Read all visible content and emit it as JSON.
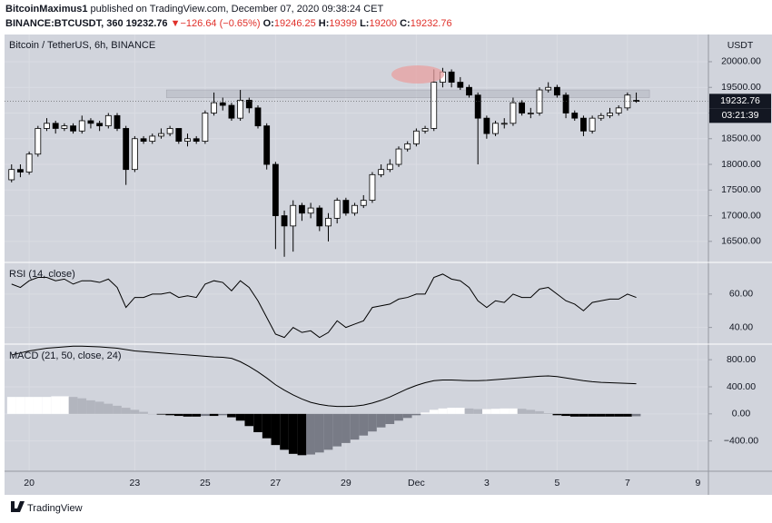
{
  "header": {
    "author": "BitcoinMaximus1",
    "published": "published on TradingView.com, December 07, 2020 09:38:24 CET",
    "symbol": "BINANCE:BTCUSDT, 360",
    "change": "▼−126.64 (−0.65%)",
    "o": "O:",
    "h": "H:",
    "l": "L:",
    "c": "C:"
  },
  "footer": "TradingView",
  "chart_data": [
    {
      "type": "candlestick",
      "title": "Bitcoin / TetherUS, 6h, BINANCE",
      "axis_title": "USDT",
      "countdown": "03:21:39",
      "up_color": "#ffffff",
      "down_color": "#000000",
      "band": [
        19300,
        19450
      ],
      "band_color": "#b8bbc4",
      "xlim": [
        -0.8,
        79.2
      ],
      "xticks": [
        {
          "value": 2,
          "label": "20"
        },
        {
          "value": 14,
          "label": "23"
        },
        {
          "value": 22,
          "label": "25"
        },
        {
          "value": 30,
          "label": "27"
        },
        {
          "value": 38,
          "label": "29"
        },
        {
          "value": 46,
          "label": "Dec"
        },
        {
          "value": 54,
          "label": "3"
        },
        {
          "value": 62,
          "label": "5"
        },
        {
          "value": 70,
          "label": "7"
        },
        {
          "value": 78,
          "label": "9"
        }
      ],
      "ylim": [
        16090,
        20530
      ],
      "yticks": [
        {
          "value": 16500,
          "label": "16500.00"
        },
        {
          "value": 17000,
          "label": "17000.00"
        },
        {
          "value": 17500,
          "label": "17500.00"
        },
        {
          "value": 18000,
          "label": "18000.00"
        },
        {
          "value": 18500,
          "label": "18500.00"
        },
        {
          "value": 19000,
          "label": "19000.00"
        },
        {
          "value": 19500,
          "label": "19500.00"
        },
        {
          "value": 20000,
          "label": "20000.00"
        }
      ],
      "grid": true,
      "open": [
        17700,
        17900,
        17850,
        18200,
        18700,
        18800,
        18700,
        18750,
        18650,
        18850,
        18800,
        18750,
        18950,
        18700,
        17900,
        18500,
        18450,
        18550,
        18600,
        18700,
        18450,
        18500,
        18450,
        19000,
        19200,
        19150,
        18900,
        19250,
        19100,
        18750,
        18000,
        17000,
        16800,
        17200,
        17050,
        17150,
        16800,
        16950,
        17300,
        17050,
        17200,
        17300,
        17800,
        17900,
        18000,
        18300,
        18400,
        18650,
        18700,
        19600,
        19800,
        19600,
        19500,
        19350,
        18900,
        18600,
        18800,
        18800,
        19200,
        19000,
        19000,
        19450,
        19500,
        19350,
        19000,
        18900,
        18650,
        18900,
        18950,
        19000,
        19100,
        19246.25
      ],
      "high": [
        18000,
        18000,
        18250,
        18750,
        18900,
        18850,
        18800,
        18800,
        18950,
        18900,
        18850,
        19000,
        19000,
        18750,
        18550,
        18550,
        18600,
        18700,
        18750,
        18700,
        18600,
        18550,
        19050,
        19400,
        19300,
        19200,
        19450,
        19300,
        19150,
        18800,
        18050,
        17100,
        17300,
        17250,
        17250,
        17200,
        17050,
        17350,
        17350,
        17250,
        17400,
        17850,
        18000,
        18100,
        18350,
        18450,
        18700,
        18750,
        19850,
        19880,
        19850,
        19700,
        19550,
        19400,
        18950,
        18850,
        18900,
        19300,
        19250,
        19100,
        19500,
        19600,
        19550,
        19400,
        19050,
        18950,
        18950,
        19000,
        19100,
        19150,
        19400,
        19399
      ],
      "low": [
        17650,
        17750,
        17800,
        18150,
        18650,
        18600,
        18650,
        18600,
        18600,
        18700,
        18650,
        18700,
        18650,
        17600,
        17850,
        18400,
        18400,
        18500,
        18550,
        18400,
        18350,
        18400,
        18400,
        18950,
        19050,
        18850,
        18850,
        19000,
        18700,
        17900,
        16350,
        16200,
        16300,
        16900,
        16950,
        16700,
        16500,
        16850,
        17000,
        17000,
        17150,
        17250,
        17750,
        17850,
        17950,
        18250,
        18350,
        18600,
        18650,
        19500,
        19500,
        19450,
        19300,
        18000,
        18500,
        18550,
        18700,
        18750,
        18950,
        18900,
        18950,
        19400,
        19300,
        18900,
        18850,
        18550,
        18600,
        18850,
        18900,
        18950,
        19050,
        19200
      ],
      "close": [
        17900,
        17850,
        18200,
        18700,
        18800,
        18700,
        18750,
        18650,
        18850,
        18800,
        18750,
        18950,
        18700,
        17900,
        18500,
        18450,
        18550,
        18600,
        18700,
        18450,
        18500,
        18450,
        19000,
        19200,
        19150,
        18900,
        19250,
        19100,
        18750,
        18000,
        17000,
        16800,
        17200,
        17050,
        17150,
        16800,
        16950,
        17300,
        17050,
        17200,
        17300,
        17800,
        17900,
        18000,
        18300,
        18400,
        18650,
        18700,
        19600,
        19800,
        19600,
        19500,
        19350,
        18900,
        18600,
        18800,
        18800,
        19200,
        19000,
        19000,
        19450,
        19500,
        19350,
        19000,
        18900,
        18650,
        18900,
        18950,
        19000,
        19100,
        19350,
        19232.76
      ]
    },
    {
      "type": "line",
      "title": "RSI (14, close)",
      "color": "#000000",
      "ylim": [
        30,
        79
      ],
      "yticks": [
        {
          "value": 40,
          "label": "40.00"
        },
        {
          "value": 60,
          "label": "60.00"
        }
      ],
      "values": [
        66,
        64,
        68,
        70,
        70,
        68,
        69,
        66,
        68,
        68,
        67,
        69,
        64,
        52,
        58,
        58,
        60,
        60,
        61,
        58,
        59,
        58,
        66,
        68,
        67,
        62,
        68,
        64,
        56,
        46,
        36,
        34,
        40,
        37,
        38,
        34,
        37,
        44,
        40,
        42,
        44,
        52,
        53,
        54,
        57,
        58,
        60,
        60,
        70,
        72,
        69,
        68,
        64,
        56,
        52,
        56,
        55,
        60,
        58,
        58,
        63,
        64,
        60,
        56,
        54,
        50,
        55,
        56,
        57,
        57,
        60,
        58
      ]
    },
    {
      "type": "macd",
      "title": "MACD (21, 50, close, 24)",
      "color": "#000000",
      "histogram_colors": {
        "pos_up": "#ffffff",
        "pos_down": "#b2b5be",
        "neg_down": "#000000",
        "neg_up": "#787b86"
      },
      "ylim": [
        -847,
        1030
      ],
      "yticks": [
        {
          "value": -400,
          "label": "−400.00"
        },
        {
          "value": 0,
          "label": "0.00"
        },
        {
          "value": 400,
          "label": "400.00"
        },
        {
          "value": 800,
          "label": "800.00"
        }
      ],
      "values": [
        870,
        900,
        930,
        950,
        970,
        980,
        990,
        1000,
        1000,
        995,
        990,
        980,
        970,
        950,
        930,
        920,
        910,
        900,
        890,
        880,
        870,
        860,
        850,
        840,
        835,
        820,
        770,
        700,
        620,
        530,
        430,
        350,
        280,
        220,
        170,
        140,
        120,
        110,
        110,
        115,
        130,
        160,
        200,
        250,
        310,
        370,
        420,
        460,
        490,
        500,
        500,
        495,
        490,
        490,
        495,
        505,
        515,
        525,
        535,
        545,
        555,
        560,
        550,
        530,
        510,
        490,
        475,
        465,
        460,
        455,
        450,
        445
      ],
      "histogram": [
        250,
        250,
        250,
        250,
        250,
        260,
        260,
        250,
        230,
        200,
        180,
        150,
        120,
        90,
        60,
        30,
        0,
        -10,
        -20,
        -30,
        -40,
        -40,
        -30,
        -30,
        -20,
        -50,
        -100,
        -180,
        -270,
        -360,
        -460,
        -530,
        -590,
        -610,
        -600,
        -570,
        -530,
        -480,
        -430,
        -380,
        -320,
        -260,
        -200,
        -150,
        -100,
        -60,
        -20,
        20,
        60,
        80,
        90,
        90,
        80,
        70,
        70,
        75,
        80,
        80,
        75,
        60,
        40,
        10,
        -20,
        -30,
        -40,
        -40,
        -40,
        -40,
        -40,
        -40,
        -40,
        -35
      ]
    }
  ]
}
